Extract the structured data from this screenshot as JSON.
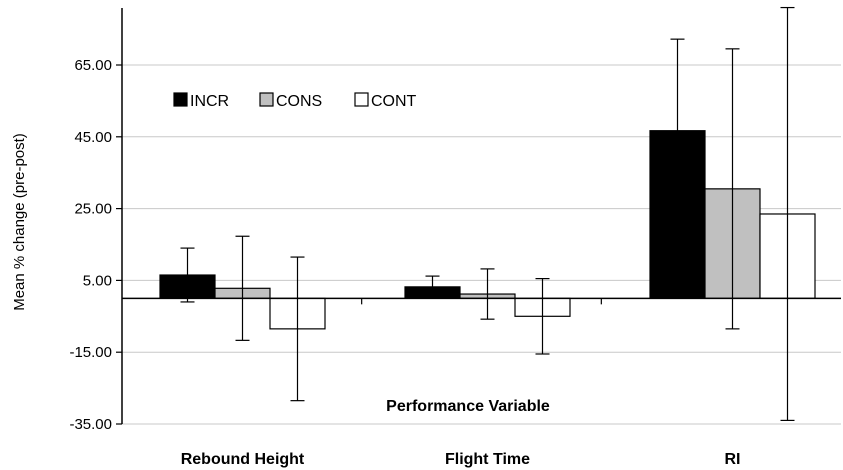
{
  "chart_data": {
    "type": "bar",
    "title": "",
    "xlabel": "Performance Variable",
    "ylabel": "Mean % change (pre-post)",
    "categories": [
      "Rebound Height",
      "Flight Time",
      "RI"
    ],
    "series": [
      {
        "name": "INCR",
        "color": "#000000",
        "values": [
          6.5,
          3.2,
          46.7
        ],
        "error": [
          7.5,
          3.0,
          25.5
        ]
      },
      {
        "name": "CONS",
        "color": "#c0c0c0",
        "values": [
          2.8,
          1.2,
          30.5
        ],
        "error": [
          14.5,
          7.0,
          39.0
        ]
      },
      {
        "name": "CONT",
        "color": "#ffffff",
        "values": [
          -8.5,
          -5.0,
          23.5
        ],
        "error": [
          20.0,
          10.5,
          57.5
        ]
      }
    ],
    "ylim": [
      -35,
      80
    ],
    "yticks": [
      "65.00",
      "45.00",
      "25.00",
      "5.00",
      "-15.00",
      "-35.00"
    ],
    "ytick_values": [
      65,
      45,
      25,
      5,
      -15,
      -35
    ],
    "grid": true,
    "legend_position": "top-left"
  }
}
